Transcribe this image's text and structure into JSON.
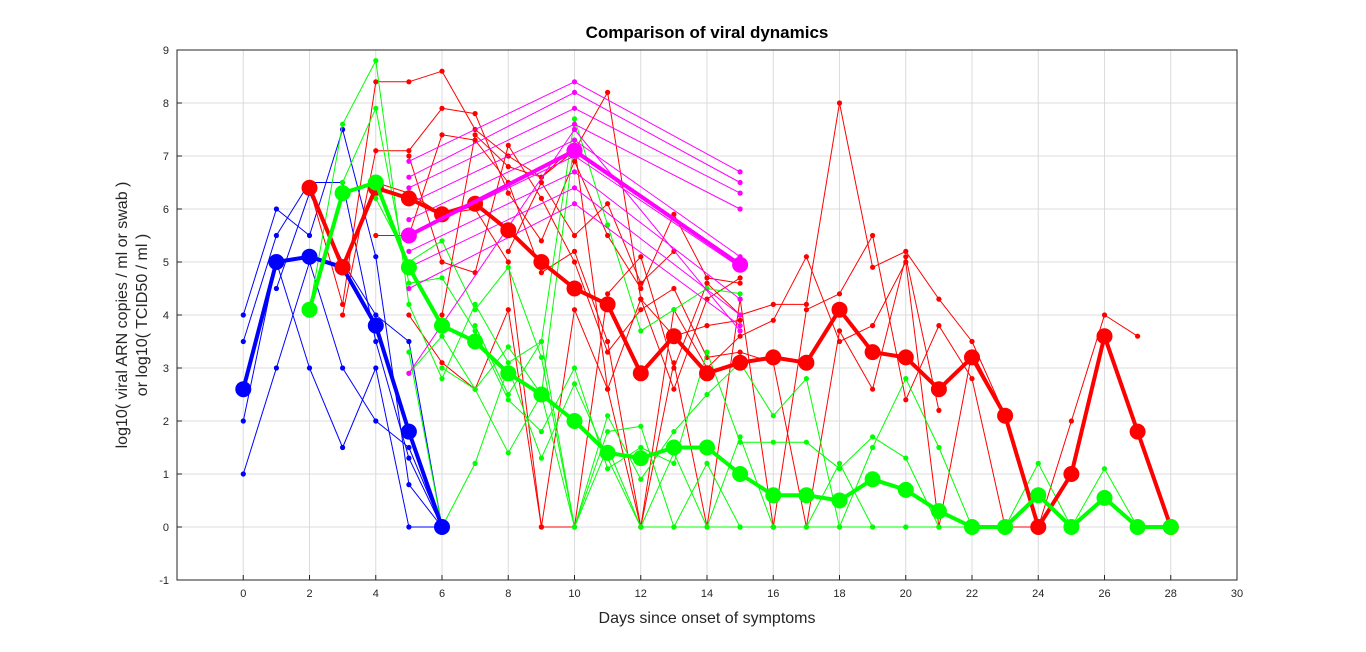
{
  "chart_data": {
    "type": "line",
    "title": "Comparison of viral dynamics",
    "xlabel": "Days since onset of symptoms",
    "ylabel_line1": "log10( viral ARN copies / ml or swab )",
    "ylabel_line2": "or log10( TCID50 / ml )",
    "xlim": [
      -2,
      30
    ],
    "ylim": [
      -1,
      9
    ],
    "xticks": [
      0,
      2,
      4,
      6,
      8,
      10,
      12,
      14,
      16,
      18,
      20,
      22,
      24,
      26,
      28,
      30
    ],
    "yticks": [
      -1,
      0,
      1,
      2,
      3,
      4,
      5,
      6,
      7,
      8,
      9
    ],
    "grid": true,
    "colors": {
      "blue": "#0000FF",
      "red": "#FF0000",
      "green": "#00FF00",
      "magenta": "#FF00FF"
    },
    "individual_series": [
      {
        "color": "blue",
        "x": [
          0,
          1,
          2,
          3,
          4,
          5,
          6
        ],
        "y": [
          4.0,
          6.0,
          5.5,
          7.5,
          5.1,
          0.8,
          0.0
        ]
      },
      {
        "color": "blue",
        "x": [
          0,
          1,
          2,
          3,
          4,
          5,
          6
        ],
        "y": [
          3.5,
          5.5,
          6.5,
          6.5,
          3.5,
          1.3,
          0.0
        ]
      },
      {
        "color": "blue",
        "x": [
          0,
          1,
          2,
          3,
          4,
          5,
          6
        ],
        "y": [
          2.0,
          5.0,
          3.0,
          1.5,
          3.0,
          0.0,
          0.0
        ]
      },
      {
        "color": "blue",
        "x": [
          0,
          1,
          2,
          3,
          4,
          5,
          6
        ],
        "y": [
          1.0,
          3.0,
          5.0,
          3.0,
          2.0,
          1.5,
          0.0
        ]
      },
      {
        "color": "blue",
        "x": [
          1,
          2,
          3,
          4,
          5,
          6
        ],
        "y": [
          4.5,
          6.3,
          5.0,
          4.0,
          3.5,
          0.0
        ]
      },
      {
        "color": "red",
        "x": [
          2,
          3,
          4,
          5,
          6,
          7,
          8,
          9,
          10,
          11,
          12,
          13,
          14,
          15
        ],
        "y": [
          6.4,
          4.2,
          8.4,
          8.4,
          8.6,
          7.5,
          7.0,
          6.6,
          7.1,
          8.2,
          4.3,
          3.6,
          3.8,
          3.9
        ]
      },
      {
        "color": "red",
        "x": [
          3,
          4,
          5,
          6,
          7,
          8,
          9,
          10,
          11,
          12,
          13,
          14,
          15
        ],
        "y": [
          4.0,
          7.1,
          7.1,
          7.9,
          7.8,
          6.3,
          5.4,
          6.9,
          5.5,
          4.5,
          5.9,
          4.7,
          4.6
        ]
      },
      {
        "color": "red",
        "x": [
          4,
          5,
          6,
          7,
          8,
          9,
          10,
          11,
          12,
          13,
          14,
          15,
          16,
          17,
          18,
          19,
          20,
          21,
          22,
          23
        ],
        "y": [
          6.5,
          6.3,
          5.9,
          6.0,
          5.0,
          0.0,
          0.0,
          4.4,
          5.1,
          3.0,
          4.6,
          4.0,
          4.2,
          4.2,
          8.0,
          4.9,
          5.2,
          4.3,
          3.5,
          2.1
        ]
      },
      {
        "color": "red",
        "x": [
          4,
          5,
          6,
          7,
          8,
          9,
          10,
          11,
          12,
          13,
          14,
          15,
          16,
          17,
          18,
          19,
          20,
          21,
          22,
          23
        ],
        "y": [
          5.5,
          5.5,
          7.4,
          7.3,
          6.5,
          4.8,
          5.2,
          3.5,
          0.0,
          4.1,
          3.0,
          3.6,
          3.9,
          5.1,
          3.5,
          3.8,
          5.0,
          0.0,
          3.3,
          2.1
        ]
      },
      {
        "color": "red",
        "x": [
          5,
          6,
          7,
          8,
          9,
          10,
          11,
          12,
          13,
          14,
          15,
          16,
          17,
          18,
          19,
          20,
          21,
          22,
          23,
          24,
          25,
          26,
          27
        ],
        "y": [
          4.0,
          3.1,
          2.6,
          4.1,
          0.0,
          4.1,
          2.6,
          0.0,
          3.1,
          0.0,
          4.3,
          0.0,
          4.1,
          4.4,
          5.5,
          2.4,
          3.8,
          2.8,
          0.0,
          0.0,
          2.0,
          4.0,
          3.6
        ]
      },
      {
        "color": "red",
        "x": [
          5,
          6,
          7,
          8,
          9,
          10,
          11,
          12,
          13,
          14,
          15,
          16,
          17,
          18,
          19,
          20,
          21
        ],
        "y": [
          7.0,
          5.0,
          4.8,
          7.2,
          6.2,
          5.0,
          3.3,
          4.1,
          4.5,
          3.2,
          3.3,
          3.1,
          0.0,
          3.7,
          2.6,
          5.1,
          2.2
        ]
      },
      {
        "color": "red",
        "x": [
          6,
          7,
          8,
          9,
          10,
          11,
          12,
          13,
          14,
          15
        ],
        "y": [
          4.0,
          7.4,
          6.8,
          6.6,
          7.2,
          2.6,
          4.3,
          2.6,
          4.3,
          4.7
        ]
      },
      {
        "color": "red",
        "x": [
          8,
          9,
          10,
          11,
          12,
          13
        ],
        "y": [
          5.2,
          6.5,
          5.5,
          6.1,
          4.6,
          5.2
        ]
      },
      {
        "color": "green",
        "x": [
          2,
          3,
          4,
          5,
          6,
          7,
          8,
          9,
          10,
          11,
          12,
          13,
          14,
          15
        ],
        "y": [
          4.1,
          7.6,
          8.8,
          4.2,
          2.8,
          4.2,
          3.1,
          3.5,
          7.7,
          5.7,
          3.7,
          4.1,
          4.5,
          4.4
        ]
      },
      {
        "color": "green",
        "x": [
          3,
          4,
          5,
          6,
          7,
          8,
          9,
          10,
          11,
          12,
          13,
          14,
          15,
          16,
          17,
          18,
          19,
          20,
          21,
          22
        ],
        "y": [
          6.5,
          7.9,
          4.6,
          4.7,
          3.7,
          2.4,
          1.8,
          3.0,
          1.1,
          1.5,
          1.2,
          3.3,
          1.6,
          1.6,
          1.6,
          1.1,
          1.7,
          1.3,
          0.0,
          0.0
        ]
      },
      {
        "color": "green",
        "x": [
          4,
          5,
          6,
          7,
          8,
          9,
          10,
          11,
          12,
          13,
          14,
          15,
          16,
          17,
          18,
          19,
          20,
          21,
          22
        ],
        "y": [
          6.2,
          5.0,
          5.4,
          4.1,
          4.9,
          3.2,
          0.0,
          2.1,
          0.9,
          1.8,
          2.5,
          3.1,
          2.1,
          2.8,
          0.0,
          1.5,
          2.8,
          1.5,
          0.0
        ]
      },
      {
        "color": "green",
        "x": [
          5,
          6,
          7,
          8,
          9,
          10,
          11,
          12,
          13,
          14,
          15,
          16,
          17,
          18,
          19,
          20,
          21,
          22,
          23,
          24,
          25,
          26,
          27,
          28
        ],
        "y": [
          3.3,
          0.0,
          1.2,
          3.0,
          1.3,
          2.7,
          1.3,
          0.0,
          0.0,
          1.2,
          0.0,
          0.0,
          0.0,
          0.0,
          0.0,
          0.0,
          0.0,
          0.0,
          0.0,
          1.2,
          0.0,
          1.1,
          0.0,
          0.0
        ]
      },
      {
        "color": "green",
        "x": [
          6,
          7,
          8,
          9,
          10,
          11,
          12,
          13,
          14,
          15,
          16,
          17,
          18,
          19,
          20,
          21,
          22
        ],
        "y": [
          3.0,
          2.6,
          1.4,
          2.5,
          0.0,
          1.8,
          1.9,
          0.0,
          0.0,
          0.0,
          0.0,
          0.0,
          1.2,
          0.0,
          0.0,
          0.0,
          0.0
        ]
      },
      {
        "color": "green",
        "x": [
          7,
          8,
          9,
          10,
          11,
          12,
          13,
          14,
          15,
          16
        ],
        "y": [
          3.8,
          2.5,
          3.5,
          0.0,
          1.5,
          0.0,
          1.4,
          0.0,
          1.7,
          0.0
        ]
      },
      {
        "color": "green",
        "x": [
          5,
          6,
          7,
          8,
          9,
          10
        ],
        "y": [
          2.9,
          3.6,
          2.6,
          3.4,
          2.5,
          7.3
        ]
      },
      {
        "color": "magenta",
        "x": [
          5,
          10,
          15
        ],
        "y": [
          6.9,
          8.4,
          6.7
        ]
      },
      {
        "color": "magenta",
        "x": [
          5,
          10,
          15
        ],
        "y": [
          6.6,
          8.2,
          6.5
        ]
      },
      {
        "color": "magenta",
        "x": [
          5,
          10,
          15
        ],
        "y": [
          6.4,
          7.9,
          6.3
        ]
      },
      {
        "color": "magenta",
        "x": [
          5,
          10,
          15
        ],
        "y": [
          6.1,
          7.6,
          6.0
        ]
      },
      {
        "color": "magenta",
        "x": [
          5,
          10,
          15
        ],
        "y": [
          5.8,
          7.3,
          5.1
        ]
      },
      {
        "color": "magenta",
        "x": [
          5,
          10,
          15
        ],
        "y": [
          5.5,
          7.0,
          4.9
        ]
      },
      {
        "color": "magenta",
        "x": [
          5,
          10,
          15
        ],
        "y": [
          5.2,
          6.7,
          4.3
        ]
      },
      {
        "color": "magenta",
        "x": [
          5,
          10,
          15
        ],
        "y": [
          4.9,
          6.4,
          4.0
        ]
      },
      {
        "color": "magenta",
        "x": [
          5,
          10,
          15
        ],
        "y": [
          4.5,
          6.1,
          3.8
        ]
      },
      {
        "color": "magenta",
        "x": [
          5,
          10,
          15
        ],
        "y": [
          2.9,
          7.5,
          3.7
        ]
      }
    ],
    "mean_series": [
      {
        "color": "blue",
        "x": [
          0,
          1,
          2,
          3,
          4,
          5,
          6
        ],
        "y": [
          2.6,
          5.0,
          5.1,
          4.9,
          3.8,
          1.8,
          0.0
        ]
      },
      {
        "color": "red",
        "x": [
          2,
          3,
          4,
          5,
          6,
          7,
          8,
          9,
          10,
          11,
          12,
          13,
          14,
          15,
          16,
          17,
          18,
          19,
          20,
          21,
          22,
          23,
          24,
          25,
          26,
          27,
          28
        ],
        "y": [
          6.4,
          4.9,
          6.4,
          6.2,
          5.9,
          6.1,
          5.6,
          5.0,
          4.5,
          4.2,
          2.9,
          3.6,
          2.9,
          3.1,
          3.2,
          3.1,
          4.1,
          3.3,
          3.2,
          2.6,
          3.2,
          2.1,
          0.0,
          1.0,
          3.6,
          1.8,
          0.0
        ]
      },
      {
        "color": "green",
        "x": [
          2,
          3,
          4,
          5,
          6,
          7,
          8,
          9,
          10,
          11,
          12,
          13,
          14,
          15,
          16,
          17,
          18,
          19,
          20,
          21,
          22,
          23,
          24,
          25,
          26,
          27,
          28
        ],
        "y": [
          4.1,
          6.3,
          6.5,
          4.9,
          3.8,
          3.5,
          2.9,
          2.5,
          2.0,
          1.4,
          1.3,
          1.5,
          1.5,
          1.0,
          0.6,
          0.6,
          0.5,
          0.9,
          0.7,
          0.3,
          0.0,
          0.0,
          0.6,
          0.0,
          0.55,
          0.0,
          0.0
        ]
      },
      {
        "color": "magenta",
        "x": [
          5,
          10,
          15
        ],
        "y": [
          5.5,
          7.1,
          4.95
        ]
      }
    ]
  }
}
